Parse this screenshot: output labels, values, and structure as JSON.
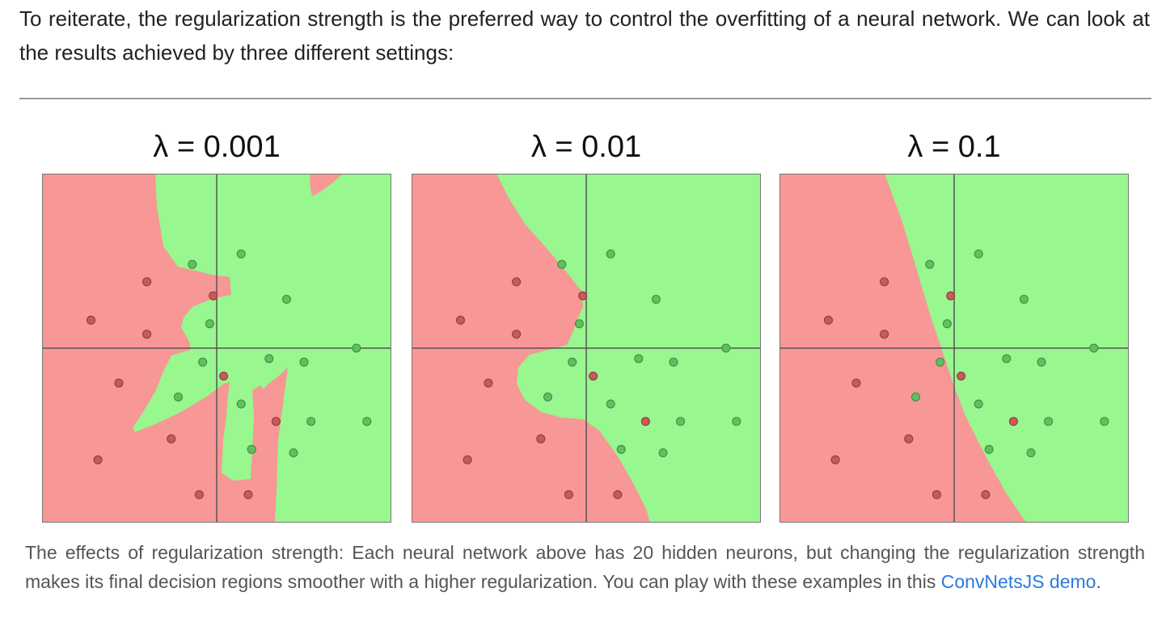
{
  "intro_text": "To reiterate, the regularization strength is the preferred way to control the overfitting of a neural network. We can look at the results achieved by three different settings:",
  "colors": {
    "red_region": "#f79796",
    "green_region": "#98f78e",
    "red_point": "#c85a5a",
    "green_point": "#60c060",
    "axis": "#555555",
    "link": "#2a7ae2"
  },
  "panels": [
    {
      "title": "λ = 0.001",
      "points": [
        {
          "x": 0.3,
          "y": 0.31,
          "cls": "red"
        },
        {
          "x": 0.43,
          "y": 0.26,
          "cls": "green"
        },
        {
          "x": 0.57,
          "y": 0.23,
          "cls": "green"
        },
        {
          "x": 0.49,
          "y": 0.35,
          "cls": "red"
        },
        {
          "x": 0.7,
          "y": 0.36,
          "cls": "green"
        },
        {
          "x": 0.14,
          "y": 0.42,
          "cls": "red"
        },
        {
          "x": 0.3,
          "y": 0.46,
          "cls": "red"
        },
        {
          "x": 0.48,
          "y": 0.43,
          "cls": "green"
        },
        {
          "x": 0.46,
          "y": 0.54,
          "cls": "green"
        },
        {
          "x": 0.65,
          "y": 0.53,
          "cls": "green"
        },
        {
          "x": 0.75,
          "y": 0.54,
          "cls": "green"
        },
        {
          "x": 0.9,
          "y": 0.5,
          "cls": "green"
        },
        {
          "x": 0.22,
          "y": 0.6,
          "cls": "red"
        },
        {
          "x": 0.52,
          "y": 0.58,
          "cls": "red"
        },
        {
          "x": 0.39,
          "y": 0.64,
          "cls": "green"
        },
        {
          "x": 0.57,
          "y": 0.66,
          "cls": "green"
        },
        {
          "x": 0.67,
          "y": 0.71,
          "cls": "red"
        },
        {
          "x": 0.77,
          "y": 0.71,
          "cls": "green"
        },
        {
          "x": 0.93,
          "y": 0.71,
          "cls": "green"
        },
        {
          "x": 0.37,
          "y": 0.76,
          "cls": "red"
        },
        {
          "x": 0.16,
          "y": 0.82,
          "cls": "red"
        },
        {
          "x": 0.6,
          "y": 0.79,
          "cls": "green"
        },
        {
          "x": 0.72,
          "y": 0.8,
          "cls": "green"
        },
        {
          "x": 0.45,
          "y": 0.92,
          "cls": "red"
        },
        {
          "x": 0.59,
          "y": 0.92,
          "cls": "red"
        }
      ]
    },
    {
      "title": "λ = 0.01",
      "points": [
        {
          "x": 0.3,
          "y": 0.31,
          "cls": "red"
        },
        {
          "x": 0.43,
          "y": 0.26,
          "cls": "green"
        },
        {
          "x": 0.57,
          "y": 0.23,
          "cls": "green"
        },
        {
          "x": 0.49,
          "y": 0.35,
          "cls": "red"
        },
        {
          "x": 0.7,
          "y": 0.36,
          "cls": "green"
        },
        {
          "x": 0.14,
          "y": 0.42,
          "cls": "red"
        },
        {
          "x": 0.3,
          "y": 0.46,
          "cls": "red"
        },
        {
          "x": 0.48,
          "y": 0.43,
          "cls": "green"
        },
        {
          "x": 0.46,
          "y": 0.54,
          "cls": "green"
        },
        {
          "x": 0.65,
          "y": 0.53,
          "cls": "green"
        },
        {
          "x": 0.75,
          "y": 0.54,
          "cls": "green"
        },
        {
          "x": 0.9,
          "y": 0.5,
          "cls": "green"
        },
        {
          "x": 0.22,
          "y": 0.6,
          "cls": "red"
        },
        {
          "x": 0.52,
          "y": 0.58,
          "cls": "red"
        },
        {
          "x": 0.39,
          "y": 0.64,
          "cls": "green"
        },
        {
          "x": 0.57,
          "y": 0.66,
          "cls": "green"
        },
        {
          "x": 0.67,
          "y": 0.71,
          "cls": "red"
        },
        {
          "x": 0.77,
          "y": 0.71,
          "cls": "green"
        },
        {
          "x": 0.93,
          "y": 0.71,
          "cls": "green"
        },
        {
          "x": 0.37,
          "y": 0.76,
          "cls": "red"
        },
        {
          "x": 0.16,
          "y": 0.82,
          "cls": "red"
        },
        {
          "x": 0.6,
          "y": 0.79,
          "cls": "green"
        },
        {
          "x": 0.72,
          "y": 0.8,
          "cls": "green"
        },
        {
          "x": 0.45,
          "y": 0.92,
          "cls": "red"
        },
        {
          "x": 0.59,
          "y": 0.92,
          "cls": "red"
        }
      ]
    },
    {
      "title": "λ = 0.1",
      "points": [
        {
          "x": 0.3,
          "y": 0.31,
          "cls": "red"
        },
        {
          "x": 0.43,
          "y": 0.26,
          "cls": "green"
        },
        {
          "x": 0.57,
          "y": 0.23,
          "cls": "green"
        },
        {
          "x": 0.49,
          "y": 0.35,
          "cls": "red"
        },
        {
          "x": 0.7,
          "y": 0.36,
          "cls": "green"
        },
        {
          "x": 0.14,
          "y": 0.42,
          "cls": "red"
        },
        {
          "x": 0.3,
          "y": 0.46,
          "cls": "red"
        },
        {
          "x": 0.48,
          "y": 0.43,
          "cls": "green"
        },
        {
          "x": 0.46,
          "y": 0.54,
          "cls": "green"
        },
        {
          "x": 0.65,
          "y": 0.53,
          "cls": "green"
        },
        {
          "x": 0.75,
          "y": 0.54,
          "cls": "green"
        },
        {
          "x": 0.9,
          "y": 0.5,
          "cls": "green"
        },
        {
          "x": 0.22,
          "y": 0.6,
          "cls": "red"
        },
        {
          "x": 0.52,
          "y": 0.58,
          "cls": "red"
        },
        {
          "x": 0.39,
          "y": 0.64,
          "cls": "green"
        },
        {
          "x": 0.57,
          "y": 0.66,
          "cls": "green"
        },
        {
          "x": 0.67,
          "y": 0.71,
          "cls": "red"
        },
        {
          "x": 0.77,
          "y": 0.71,
          "cls": "green"
        },
        {
          "x": 0.93,
          "y": 0.71,
          "cls": "green"
        },
        {
          "x": 0.37,
          "y": 0.76,
          "cls": "red"
        },
        {
          "x": 0.16,
          "y": 0.82,
          "cls": "red"
        },
        {
          "x": 0.6,
          "y": 0.79,
          "cls": "green"
        },
        {
          "x": 0.72,
          "y": 0.8,
          "cls": "green"
        },
        {
          "x": 0.45,
          "y": 0.92,
          "cls": "red"
        },
        {
          "x": 0.59,
          "y": 0.92,
          "cls": "red"
        }
      ]
    }
  ],
  "caption": {
    "text": "The effects of regularization strength: Each neural network above has 20 hidden neurons, but changing the regularization strength makes its final decision regions smoother with a higher regularization. You can play with these examples in this ",
    "link_text": "ConvNetsJS demo",
    "end": "."
  }
}
